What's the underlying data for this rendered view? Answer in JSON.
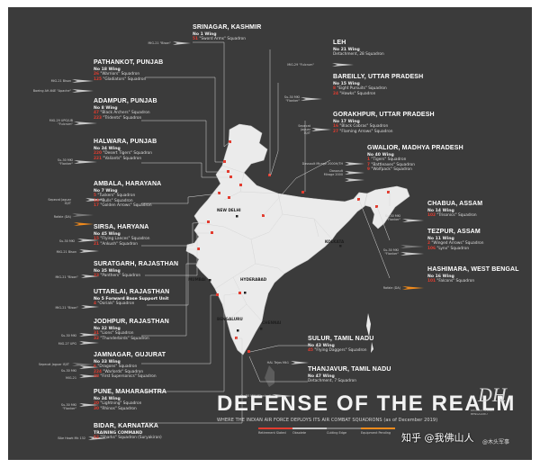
{
  "title": "DEFENSE OF THE REALM",
  "subtitle": "WHERE THE INDIAN AIR FORCE DEPLOYS ITS AIR COMBAT SQUADRONS (as of December 2019)",
  "legend": [
    {
      "label": "Retirement Slated",
      "color": "#e23c2f"
    },
    {
      "label": "Obsolete",
      "color": "#c7c7c7"
    },
    {
      "label": "Cutting Edge",
      "color": "#7a7a7a"
    },
    {
      "label": "Equipment Pending",
      "color": "#f08a1c"
    }
  ],
  "logo": {
    "text": "DH",
    "sub1": "DECCAN HERALD",
    "sub2": "BENGALURU"
  },
  "watermark": "知乎 @我佛山人",
  "watermark_small": "@木头军事",
  "cities": {
    "new_delhi": "NEW DELHI",
    "kolkata": "KOLKATA",
    "hyderabad": "HYDERABAD",
    "mumbai": "MUMBAI",
    "bengaluru": "BENGALURU",
    "chennai": "CHENNAI"
  },
  "bases": {
    "srinagar": {
      "name": "SRINAGAR, KASHMIR",
      "wing": "No 1 Wing",
      "squadrons": [
        {
          "num": "51",
          "text": "\"Sword Arms\" Squadron"
        }
      ]
    },
    "pathankot": {
      "name": "PATHANKOT, PUNJAB",
      "wing": "No 18 Wing",
      "squadrons": [
        {
          "num": "26",
          "text": "\"Warriors\" Squadron"
        },
        {
          "num": "125",
          "text": "\"Gladiators\" Squadron"
        }
      ]
    },
    "adampur": {
      "name": "ADAMPUR, PUNJAB",
      "wing": "No 8 Wing",
      "squadrons": [
        {
          "num": "47",
          "text": "\"Black Archers\" Squadron"
        },
        {
          "num": "223",
          "text": "\"Tridents\" Squadron"
        }
      ]
    },
    "halwara": {
      "name": "HALWARA, PUNJAB",
      "wing": "No 34 Wing",
      "squadrons": [
        {
          "num": "220",
          "text": "\"Desert Tigers\" Squadron"
        },
        {
          "num": "221",
          "text": "\"Valiants\" Squadron"
        }
      ]
    },
    "ambala": {
      "name": "AMBALA, HARAYANA",
      "wing": "No 7 Wing",
      "squadrons": [
        {
          "num": "5",
          "text": "\"Tuskers\" Squadron"
        },
        {
          "num": "14",
          "text": "\"Bulls\" Squadron"
        },
        {
          "num": "17",
          "text": "\"Golden Arrows\" Squadron"
        }
      ]
    },
    "sirsa": {
      "name": "SIRSA, HARYANA",
      "wing": "No 45 Wing",
      "squadrons": [
        {
          "num": "15",
          "text": "\"Flying Lances\" Squadron"
        },
        {
          "num": "21",
          "text": "\"Ankush\" Squadron"
        }
      ]
    },
    "suratgarh": {
      "name": "SURATGARH, RAJASTHAN",
      "wing": "No 35 Wing",
      "squadrons": [
        {
          "num": "23",
          "text": "\"Panthers\" Squadron"
        }
      ]
    },
    "uttarlai": {
      "name": "UTTARLAI, RAJASTHAN",
      "wing": "No 5 Forward Base Support Unit",
      "squadrons": [
        {
          "num": "4",
          "text": "\"Oorials\" Squadron"
        }
      ]
    },
    "jodhpur": {
      "name": "JODHPUR, RAJASTHAN",
      "wing": "No 32 Wing",
      "squadrons": [
        {
          "num": "31",
          "text": "\"Lions\" Squadron"
        },
        {
          "num": "32",
          "text": "\"Thunderbirds\" Squadron"
        }
      ]
    },
    "jamnagar": {
      "name": "JAMNAGAR, GUJURAT",
      "wing": "No 33 Wing",
      "squadrons": [
        {
          "num": "6",
          "text": "\"Dragons\" Squadron"
        },
        {
          "num": "224",
          "text": "\"Warlords\" Squadron"
        },
        {
          "num": "28",
          "text": "\"First Supersonics\" Squadron"
        }
      ]
    },
    "pune": {
      "name": "PUNE, MAHARASHTRA",
      "wing": "No 34 Wing",
      "squadrons": [
        {
          "num": "20",
          "text": "\"Lightning\" Squadron"
        },
        {
          "num": "30",
          "text": "\"Rhinos\" Squadron"
        }
      ]
    },
    "bidar": {
      "name": "BIDAR, KARNATAKA",
      "wing": "TRAINING COMMAND",
      "squadrons": [
        {
          "num": "52",
          "text": "\"Sharks\" Squadron (Suryakiran)"
        }
      ]
    },
    "leh": {
      "name": "LEH",
      "wing": "No 21 Wing",
      "squadrons": [
        {
          "num": "",
          "text": "Detachment, 28 Squadron"
        }
      ]
    },
    "bareilly": {
      "name": "BAREILLY, UTTAR PRADESH",
      "wing": "No 15 Wing",
      "squadrons": [
        {
          "num": "8",
          "text": "\"Eight Pursuits\" Squadron"
        },
        {
          "num": "24",
          "text": "\"Hawks\" Squadron"
        }
      ]
    },
    "gorakhpur": {
      "name": "GORAKHPUR, UTTAR PRADESH",
      "wing": "No 17 Wing",
      "squadrons": [
        {
          "num": "16",
          "text": "\"Black Cobras\" Squadron"
        },
        {
          "num": "27",
          "text": "\"Flaming Arrows\" Squadron"
        }
      ]
    },
    "gwalior": {
      "name": "GWALIOR, MADHYA PRADESH",
      "wing": "No 40 Wing",
      "squadrons": [
        {
          "num": "1",
          "text": "\"Tigers\" Squadron"
        },
        {
          "num": "7",
          "text": "\"Battleaxes\" Squadron"
        },
        {
          "num": "9",
          "text": "\"Wolfpack\" Squadron"
        }
      ]
    },
    "chabua": {
      "name": "CHABUA, ASSAM",
      "wing": "No 14 Wing",
      "squadrons": [
        {
          "num": "102",
          "text": "\"Trisonics\" Squadron"
        }
      ]
    },
    "tezpur": {
      "name": "TEZPUR, ASSAM",
      "wing": "No 11 Wing",
      "squadrons": [
        {
          "num": "2",
          "text": "\"Winged Arrows\" Squadron"
        },
        {
          "num": "106",
          "text": "\"Lynx\" Squadron"
        }
      ]
    },
    "hashimara": {
      "name": "HASHIMARA, WEST BENGAL",
      "wing": "No 16 Wing",
      "squadrons": [
        {
          "num": "101",
          "text": "\"Falcons\" Squadron"
        }
      ]
    },
    "sulur": {
      "name": "SULUR, TAMIL NADU",
      "wing": "No 43 Wing",
      "squadrons": [
        {
          "num": "45",
          "text": "\"Flying Daggers\" Squadron"
        }
      ]
    },
    "thanjavur": {
      "name": "THANJAVUR, TAMIL NADU",
      "wing": "No 47 Wing",
      "squadrons": [
        {
          "num": "",
          "text": "Detachment, 7 Squadron"
        }
      ]
    }
  },
  "aircraft": {
    "srinagar": [
      "MiG-21 \"Bison\""
    ],
    "pathankot": [
      "MiG-21 Bison",
      "Boeing AH-64E \"Apache\""
    ],
    "adampur": [
      "MiG-29 UPG/UB",
      "\"Fulcrum\""
    ],
    "halwara": [
      "Su-30 MKI",
      "\"Flanker\""
    ],
    "ambala": [
      "Sepecat Jaguar",
      "IS/IT",
      "Rafale (DA)"
    ],
    "sirsa": [
      "Su-30 MKI",
      "MiG-21 Bison"
    ],
    "suratgarh": [
      "MiG-21 \"Bison\""
    ],
    "uttarlai": [
      "MiG-21 \"Bison\""
    ],
    "jodhpur": [
      "Su-30 MKI",
      "MiG-27 UPG"
    ],
    "jamnagar": [
      "Sepecat Jaguar IS/IT",
      "Su-30 MKI",
      "MiG-21"
    ],
    "pune": [
      "Su-30 MKI",
      "\"Flanker\""
    ],
    "bidar": [
      "BAe Hawk Mk 132"
    ],
    "leh": [
      "MiG-29 \"Fulcrum\""
    ],
    "bareilly": [
      "Su-30 MKI",
      "\"Flanker\""
    ],
    "gorakhpur": [
      "Sepecat",
      "Jaguar",
      "IS/IT"
    ],
    "gwalior": [
      "Dassault Mirage 2000H/TH",
      "Dassault",
      "Mirage 2000"
    ],
    "chabua": [
      "Su-30 MKI",
      "\"Flanker\""
    ],
    "tezpur": [
      "Su-30 MKI",
      "\"Flanker\""
    ],
    "hashimara": [
      "Rafale (DA)"
    ],
    "sulur": [
      "HAL Tejas Mk1"
    ],
    "thanjavur": [
      "Su-30 MKI \"Flanker\""
    ]
  }
}
